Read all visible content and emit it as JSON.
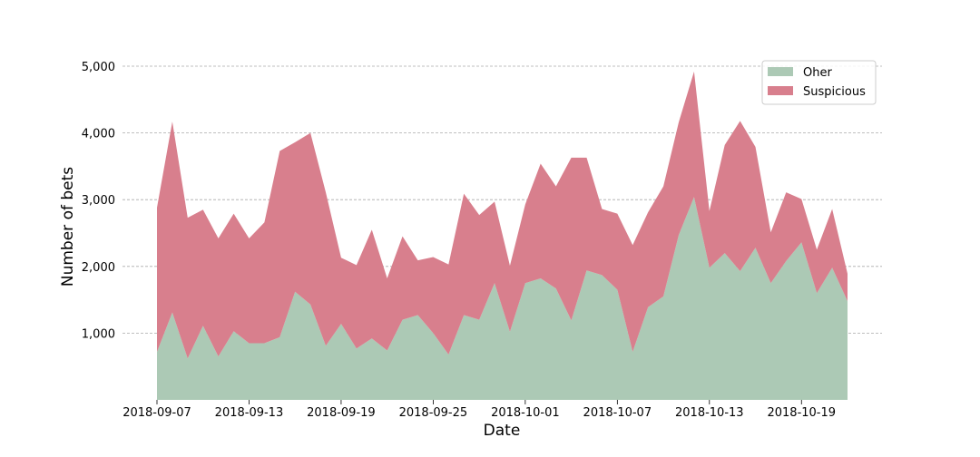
{
  "chart_data": {
    "type": "area",
    "stacked": true,
    "xlabel": "Date",
    "ylabel": "Number of bets",
    "xlim": [
      "2018-09-07",
      "2018-10-22"
    ],
    "ylim": [
      0,
      5000
    ],
    "grid": "y-dashed",
    "legend_position": "top-right",
    "x_ticks": [
      "2018-09-07",
      "2018-09-13",
      "2018-09-19",
      "2018-09-25",
      "2018-10-01",
      "2018-10-07",
      "2018-10-13",
      "2018-10-19"
    ],
    "y_ticks": [
      1000,
      2000,
      3000,
      4000,
      5000
    ],
    "y_tick_labels": [
      "1,000",
      "2,000",
      "3,000",
      "4,000",
      "5,000"
    ],
    "x": [
      "2018-09-07",
      "2018-09-08",
      "2018-09-09",
      "2018-09-10",
      "2018-09-11",
      "2018-09-12",
      "2018-09-13",
      "2018-09-14",
      "2018-09-15",
      "2018-09-16",
      "2018-09-17",
      "2018-09-18",
      "2018-09-19",
      "2018-09-20",
      "2018-09-21",
      "2018-09-22",
      "2018-09-23",
      "2018-09-24",
      "2018-09-25",
      "2018-09-26",
      "2018-09-27",
      "2018-09-28",
      "2018-09-29",
      "2018-09-30",
      "2018-10-01",
      "2018-10-02",
      "2018-10-03",
      "2018-10-04",
      "2018-10-05",
      "2018-10-06",
      "2018-10-07",
      "2018-10-08",
      "2018-10-09",
      "2018-10-10",
      "2018-10-11",
      "2018-10-12",
      "2018-10-13",
      "2018-10-14",
      "2018-10-15",
      "2018-10-16",
      "2018-10-17",
      "2018-10-18",
      "2018-10-19",
      "2018-10-20",
      "2018-10-21",
      "2018-10-22"
    ],
    "series": [
      {
        "name": "Oher",
        "color": "#acc9b5",
        "values": [
          720,
          1310,
          620,
          1110,
          650,
          1030,
          850,
          850,
          940,
          1620,
          1430,
          810,
          1140,
          770,
          920,
          740,
          1200,
          1270,
          1000,
          680,
          1270,
          1200,
          1750,
          1020,
          1750,
          1820,
          1670,
          1190,
          1940,
          1870,
          1650,
          720,
          1390,
          1550,
          2470,
          3040,
          1980,
          2200,
          1930,
          2280,
          1750,
          2080,
          2360,
          1600,
          1980,
          1480
        ]
      },
      {
        "name": "Suspicious",
        "color": "#d87f8d",
        "values": [
          2160,
          2860,
          2110,
          1740,
          1770,
          1760,
          1570,
          1810,
          2790,
          2240,
          2570,
          2300,
          990,
          1250,
          1630,
          1080,
          1250,
          820,
          1140,
          1350,
          1820,
          1570,
          1220,
          990,
          1180,
          1720,
          1530,
          2440,
          1690,
          990,
          1140,
          1600,
          1420,
          1650,
          1690,
          1880,
          850,
          1620,
          2250,
          1510,
          760,
          1030,
          650,
          650,
          880,
          410
        ]
      }
    ]
  }
}
